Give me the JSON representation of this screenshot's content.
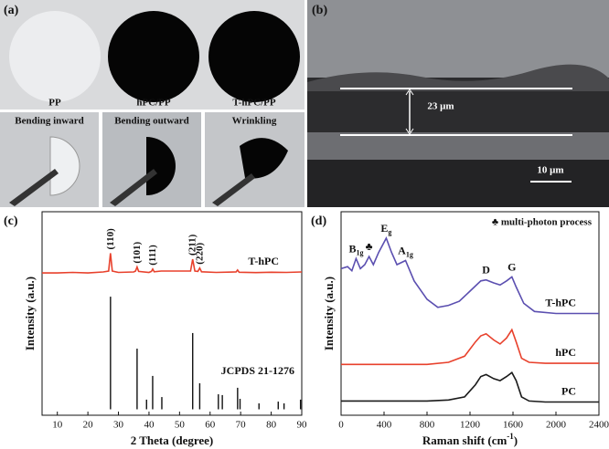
{
  "panels": {
    "a": "(a)",
    "b": "(b)",
    "c": "(c)",
    "d": "(d)"
  },
  "photos": {
    "samples": [
      "PP",
      "hPC/PP",
      "T-hPC/PP"
    ],
    "bending": [
      "Bending inward",
      "Bending outward",
      "Wrinkling"
    ]
  },
  "sem": {
    "thickness": "23 μm",
    "scale_bar": "10 μm"
  },
  "chart_data": [
    {
      "type": "line",
      "x_label": {
        "text": "2 Theta (degree)"
      },
      "y_label": "Intensity (a.u.)",
      "xlim": [
        5,
        90
      ],
      "xticks": [
        10,
        20,
        30,
        40,
        50,
        60,
        70,
        80,
        90
      ],
      "ylim": [
        -3,
        100
      ],
      "series": [
        {
          "name": "T-hPC",
          "color": "#e8412c",
          "x": [
            5,
            10,
            15,
            20,
            25,
            26.8,
            27.4,
            28,
            30,
            35,
            35.6,
            36.1,
            36.6,
            40,
            40.8,
            41.2,
            41.7,
            44,
            53.6,
            54.3,
            55,
            56,
            56.6,
            57.2,
            62,
            68.5,
            69,
            69.5,
            75,
            80,
            85,
            90
          ],
          "values": [
            69,
            69,
            69.3,
            69,
            69.5,
            70,
            79,
            70,
            69.3,
            69.5,
            70,
            72,
            69.8,
            69.3,
            69.8,
            71,
            69.6,
            70,
            70,
            76,
            70,
            69.8,
            71.5,
            69.6,
            69.3,
            69.5,
            70.5,
            69.4,
            69.2,
            69.4,
            69.3,
            69.5
          ]
        }
      ],
      "reference": {
        "name": "JCPDS 21-1276",
        "color": "#111111",
        "x": [
          27.4,
          36.1,
          39.2,
          41.2,
          44.2,
          54.3,
          56.6,
          62.7,
          64.0,
          69.0,
          69.8,
          76.0,
          82.3,
          84.2,
          89.6
        ],
        "values": [
          57,
          30.7,
          4.9,
          16.9,
          6.2,
          38.6,
          13.2,
          7.6,
          7.2,
          10.9,
          5.3,
          3,
          3.9,
          3,
          4.9
        ]
      },
      "peak_labels": [
        {
          "main": "(110)",
          "x": 27.4
        },
        {
          "main": "(101)",
          "x": 36.1
        },
        {
          "main": "(111)",
          "x": 41.2
        },
        {
          "main": "(211)",
          "x": 54.3
        },
        {
          "main": "(220)",
          "x": 56.6
        }
      ]
    },
    {
      "type": "line",
      "x_label": {
        "text": "Raman shift (cm",
        "sup": "-1",
        "end": ")"
      },
      "y_label": "Intensity (a.u.)",
      "xlim": [
        0,
        2400
      ],
      "xticks": [
        0,
        400,
        800,
        1200,
        1600,
        2000,
        2400
      ],
      "ylim": [
        0,
        100
      ],
      "series": [
        {
          "name": "PC",
          "color": "#1a1a1a",
          "x": [
            0,
            200,
            400,
            600,
            800,
            1000,
            1150,
            1250,
            1300,
            1350,
            1420,
            1480,
            1540,
            1590,
            1630,
            1680,
            1750,
            1900,
            2100,
            2400
          ],
          "values": [
            7,
            7,
            7,
            7,
            7,
            7.5,
            9,
            15,
            19,
            20,
            18,
            17,
            19,
            21,
            17,
            9,
            7,
            6.5,
            6.5,
            6.5
          ]
        },
        {
          "name": "hPC",
          "color": "#e8412c",
          "x": [
            0,
            200,
            400,
            600,
            800,
            1000,
            1150,
            1250,
            1300,
            1350,
            1420,
            1480,
            1540,
            1590,
            1630,
            1680,
            1750,
            1900,
            2100,
            2400
          ],
          "values": [
            25,
            25,
            25,
            25,
            25,
            26,
            29,
            36,
            39,
            40,
            37,
            35,
            38,
            42,
            36,
            28,
            26,
            25.5,
            25.5,
            25.5
          ]
        },
        {
          "name": "T-hPC",
          "color": "#5b4fb0",
          "x": [
            0,
            60,
            100,
            140,
            180,
            220,
            260,
            300,
            350,
            420,
            470,
            520,
            600,
            680,
            800,
            900,
            1000,
            1100,
            1200,
            1300,
            1350,
            1420,
            1480,
            1540,
            1590,
            1630,
            1700,
            1800,
            2000,
            2200,
            2400
          ],
          "values": [
            72,
            73,
            71,
            77,
            72,
            74,
            78,
            74,
            80,
            87,
            80,
            74,
            76,
            66,
            57,
            53,
            54,
            56,
            61,
            66,
            66.5,
            65,
            64,
            66,
            68,
            63,
            55,
            51,
            50,
            50,
            50
          ]
        }
      ],
      "peak_labels": [
        {
          "main": "B",
          "sub": "1g",
          "x": 140
        },
        {
          "main": "♣",
          "x": 260
        },
        {
          "main": "E",
          "sub": "g",
          "x": 420
        },
        {
          "main": "A",
          "sub": "1g",
          "x": 600
        },
        {
          "main": "D",
          "x": 1350
        },
        {
          "main": "G",
          "x": 1590
        }
      ],
      "annotation": "♣ multi-photon process"
    }
  ]
}
